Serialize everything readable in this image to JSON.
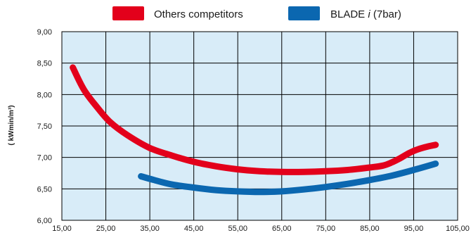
{
  "chart_data": {
    "type": "line",
    "title": "",
    "xlabel": "",
    "ylabel": "( kWmin/m³)",
    "xlim": [
      15,
      105
    ],
    "ylim": [
      6.0,
      9.0
    ],
    "x_ticks": [
      "15,00",
      "25,00",
      "35,00",
      "45,00",
      "55,00",
      "65,00",
      "75,00",
      "85,00",
      "95,00",
      "105,00"
    ],
    "y_ticks": [
      "6,00",
      "6,50",
      "7,00",
      "7,50",
      "8,00",
      "8,50",
      "9,00"
    ],
    "grid": true,
    "legend_position": "top",
    "plot_background": "#d8ecf8",
    "series": [
      {
        "name": "Others competitors",
        "name_parts": [
          "Others competitors",
          "",
          ""
        ],
        "color": "#e3001b",
        "x": [
          17.5,
          20,
          23,
          26,
          30,
          35,
          40,
          45,
          50,
          55,
          60,
          65,
          70,
          75,
          80,
          85,
          88,
          90,
          92,
          94,
          96,
          98,
          100
        ],
        "y": [
          8.43,
          8.08,
          7.8,
          7.56,
          7.35,
          7.15,
          7.03,
          6.93,
          6.86,
          6.81,
          6.78,
          6.77,
          6.77,
          6.78,
          6.8,
          6.84,
          6.87,
          6.92,
          6.99,
          7.07,
          7.13,
          7.17,
          7.2
        ]
      },
      {
        "name": "BLADE i (7bar)",
        "name_parts": [
          "BLADE ",
          "i",
          " (7bar)"
        ],
        "color": "#0b67b0",
        "x": [
          33,
          36,
          40,
          45,
          50,
          55,
          60,
          65,
          70,
          75,
          80,
          85,
          90,
          95,
          100
        ],
        "y": [
          6.7,
          6.64,
          6.57,
          6.52,
          6.48,
          6.46,
          6.45,
          6.46,
          6.49,
          6.53,
          6.58,
          6.64,
          6.71,
          6.8,
          6.9
        ]
      }
    ]
  }
}
